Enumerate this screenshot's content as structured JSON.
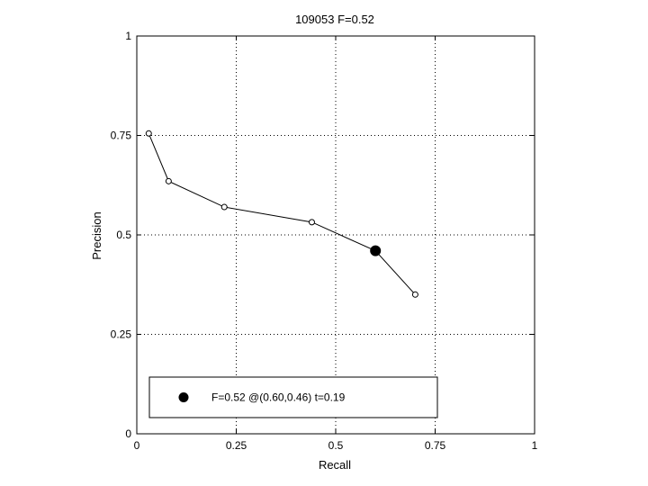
{
  "chart_data": {
    "type": "line",
    "title": "109053 F=0.52",
    "xlabel": "Recall",
    "ylabel": "Precision",
    "xlim": [
      0,
      1
    ],
    "ylim": [
      0,
      1
    ],
    "xticks": [
      0,
      0.25,
      0.5,
      0.75,
      1
    ],
    "yticks": [
      0,
      0.25,
      0.5,
      0.75,
      1
    ],
    "xtick_labels": [
      "0",
      "0.25",
      "0.5",
      "0.75",
      "1"
    ],
    "ytick_labels": [
      "0",
      "0.25",
      "0.5",
      "0.75",
      "1"
    ],
    "grid": true,
    "series": [
      {
        "x": [
          0.03,
          0.08,
          0.22,
          0.44,
          0.6,
          0.7
        ],
        "y": [
          0.755,
          0.635,
          0.57,
          0.532,
          0.46,
          0.35
        ],
        "color": "#000000"
      }
    ],
    "best_point": {
      "x": 0.6,
      "y": 0.46,
      "color": "#000000"
    },
    "legend": {
      "placement": "bottom",
      "text": "F=0.52 @(0.60,0.46) t=0.19"
    }
  }
}
